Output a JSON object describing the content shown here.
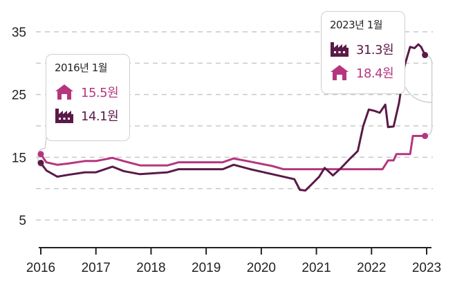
{
  "colors": {
    "household": "#b5367e",
    "industrial": "#5a1a47",
    "grid": "#c8c8c8",
    "axis": "#222222",
    "connector": "#d0d0d0"
  },
  "chart_data": {
    "type": "line",
    "title": "",
    "xlabel": "",
    "ylabel": "",
    "ylim": [
      0,
      35
    ],
    "xlim": [
      2016,
      2023
    ],
    "yticks": [
      "35",
      "25",
      "15",
      "5"
    ],
    "xticks": [
      "2016",
      "2017",
      "2018",
      "2019",
      "2020",
      "2021",
      "2022",
      "2023"
    ],
    "series": [
      {
        "name": "household",
        "icon": "house-icon",
        "points": [
          [
            2016.0,
            15.5
          ],
          [
            2016.1,
            14.2
          ],
          [
            2016.3,
            13.8
          ],
          [
            2016.5,
            14.0
          ],
          [
            2016.8,
            14.4
          ],
          [
            2017.0,
            14.4
          ],
          [
            2017.3,
            14.9
          ],
          [
            2017.5,
            14.4
          ],
          [
            2017.8,
            13.7
          ],
          [
            2018.3,
            13.7
          ],
          [
            2018.5,
            14.2
          ],
          [
            2019.0,
            14.2
          ],
          [
            2019.3,
            14.2
          ],
          [
            2019.5,
            14.8
          ],
          [
            2019.8,
            14.3
          ],
          [
            2020.2,
            13.6
          ],
          [
            2020.4,
            13.1
          ],
          [
            2020.8,
            13.1
          ],
          [
            2021.5,
            13.1
          ],
          [
            2022.0,
            13.1
          ],
          [
            2022.2,
            13.1
          ],
          [
            2022.3,
            14.5
          ],
          [
            2022.4,
            14.5
          ],
          [
            2022.45,
            15.5
          ],
          [
            2022.6,
            15.5
          ],
          [
            2022.7,
            15.5
          ],
          [
            2022.75,
            18.4
          ],
          [
            2022.97,
            18.4
          ]
        ]
      },
      {
        "name": "industrial",
        "icon": "factory-icon",
        "points": [
          [
            2016.0,
            14.1
          ],
          [
            2016.1,
            12.9
          ],
          [
            2016.3,
            11.9
          ],
          [
            2016.5,
            12.2
          ],
          [
            2016.8,
            12.6
          ],
          [
            2017.0,
            12.6
          ],
          [
            2017.3,
            13.5
          ],
          [
            2017.5,
            12.8
          ],
          [
            2017.8,
            12.3
          ],
          [
            2018.3,
            12.6
          ],
          [
            2018.5,
            13.1
          ],
          [
            2019.0,
            13.1
          ],
          [
            2019.3,
            13.1
          ],
          [
            2019.5,
            13.8
          ],
          [
            2019.8,
            13.1
          ],
          [
            2020.2,
            12.3
          ],
          [
            2020.45,
            11.8
          ],
          [
            2020.6,
            11.5
          ],
          [
            2020.7,
            9.8
          ],
          [
            2020.8,
            9.7
          ],
          [
            2020.95,
            11.0
          ],
          [
            2021.05,
            11.9
          ],
          [
            2021.15,
            13.3
          ],
          [
            2021.3,
            12.1
          ],
          [
            2021.45,
            13.3
          ],
          [
            2021.6,
            14.7
          ],
          [
            2021.75,
            16.0
          ],
          [
            2021.85,
            20.0
          ],
          [
            2021.95,
            22.6
          ],
          [
            2022.05,
            22.4
          ],
          [
            2022.15,
            22.1
          ],
          [
            2022.25,
            23.4
          ],
          [
            2022.3,
            19.8
          ],
          [
            2022.4,
            19.9
          ],
          [
            2022.5,
            23.7
          ],
          [
            2022.6,
            29.6
          ],
          [
            2022.7,
            32.6
          ],
          [
            2022.78,
            32.4
          ],
          [
            2022.85,
            33.0
          ],
          [
            2022.9,
            32.6
          ],
          [
            2022.97,
            31.3
          ]
        ]
      }
    ],
    "annotations": [
      {
        "label": "2016년 1월",
        "household": "15.5원",
        "industrial": "14.1원"
      },
      {
        "label": "2023년 1월",
        "industrial": "31.3원",
        "household": "18.4원"
      }
    ]
  },
  "callouts": {
    "start": {
      "title": "2016년 1월",
      "household_value": "15.5원",
      "industrial_value": "14.1원"
    },
    "end": {
      "title": "2023년 1월",
      "industrial_value": "31.3원",
      "household_value": "18.4원"
    }
  }
}
